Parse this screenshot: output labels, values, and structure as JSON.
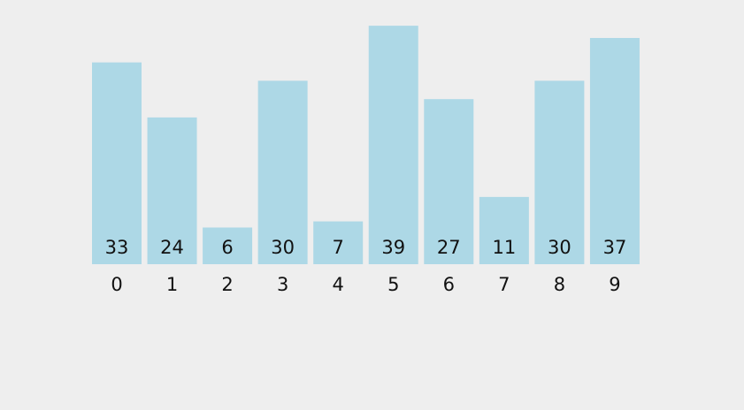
{
  "chart_data": {
    "type": "bar",
    "categories": [
      "0",
      "1",
      "2",
      "3",
      "4",
      "5",
      "6",
      "7",
      "8",
      "9"
    ],
    "values": [
      33,
      24,
      6,
      30,
      7,
      39,
      27,
      11,
      30,
      37
    ],
    "color": "#add8e6"
  }
}
